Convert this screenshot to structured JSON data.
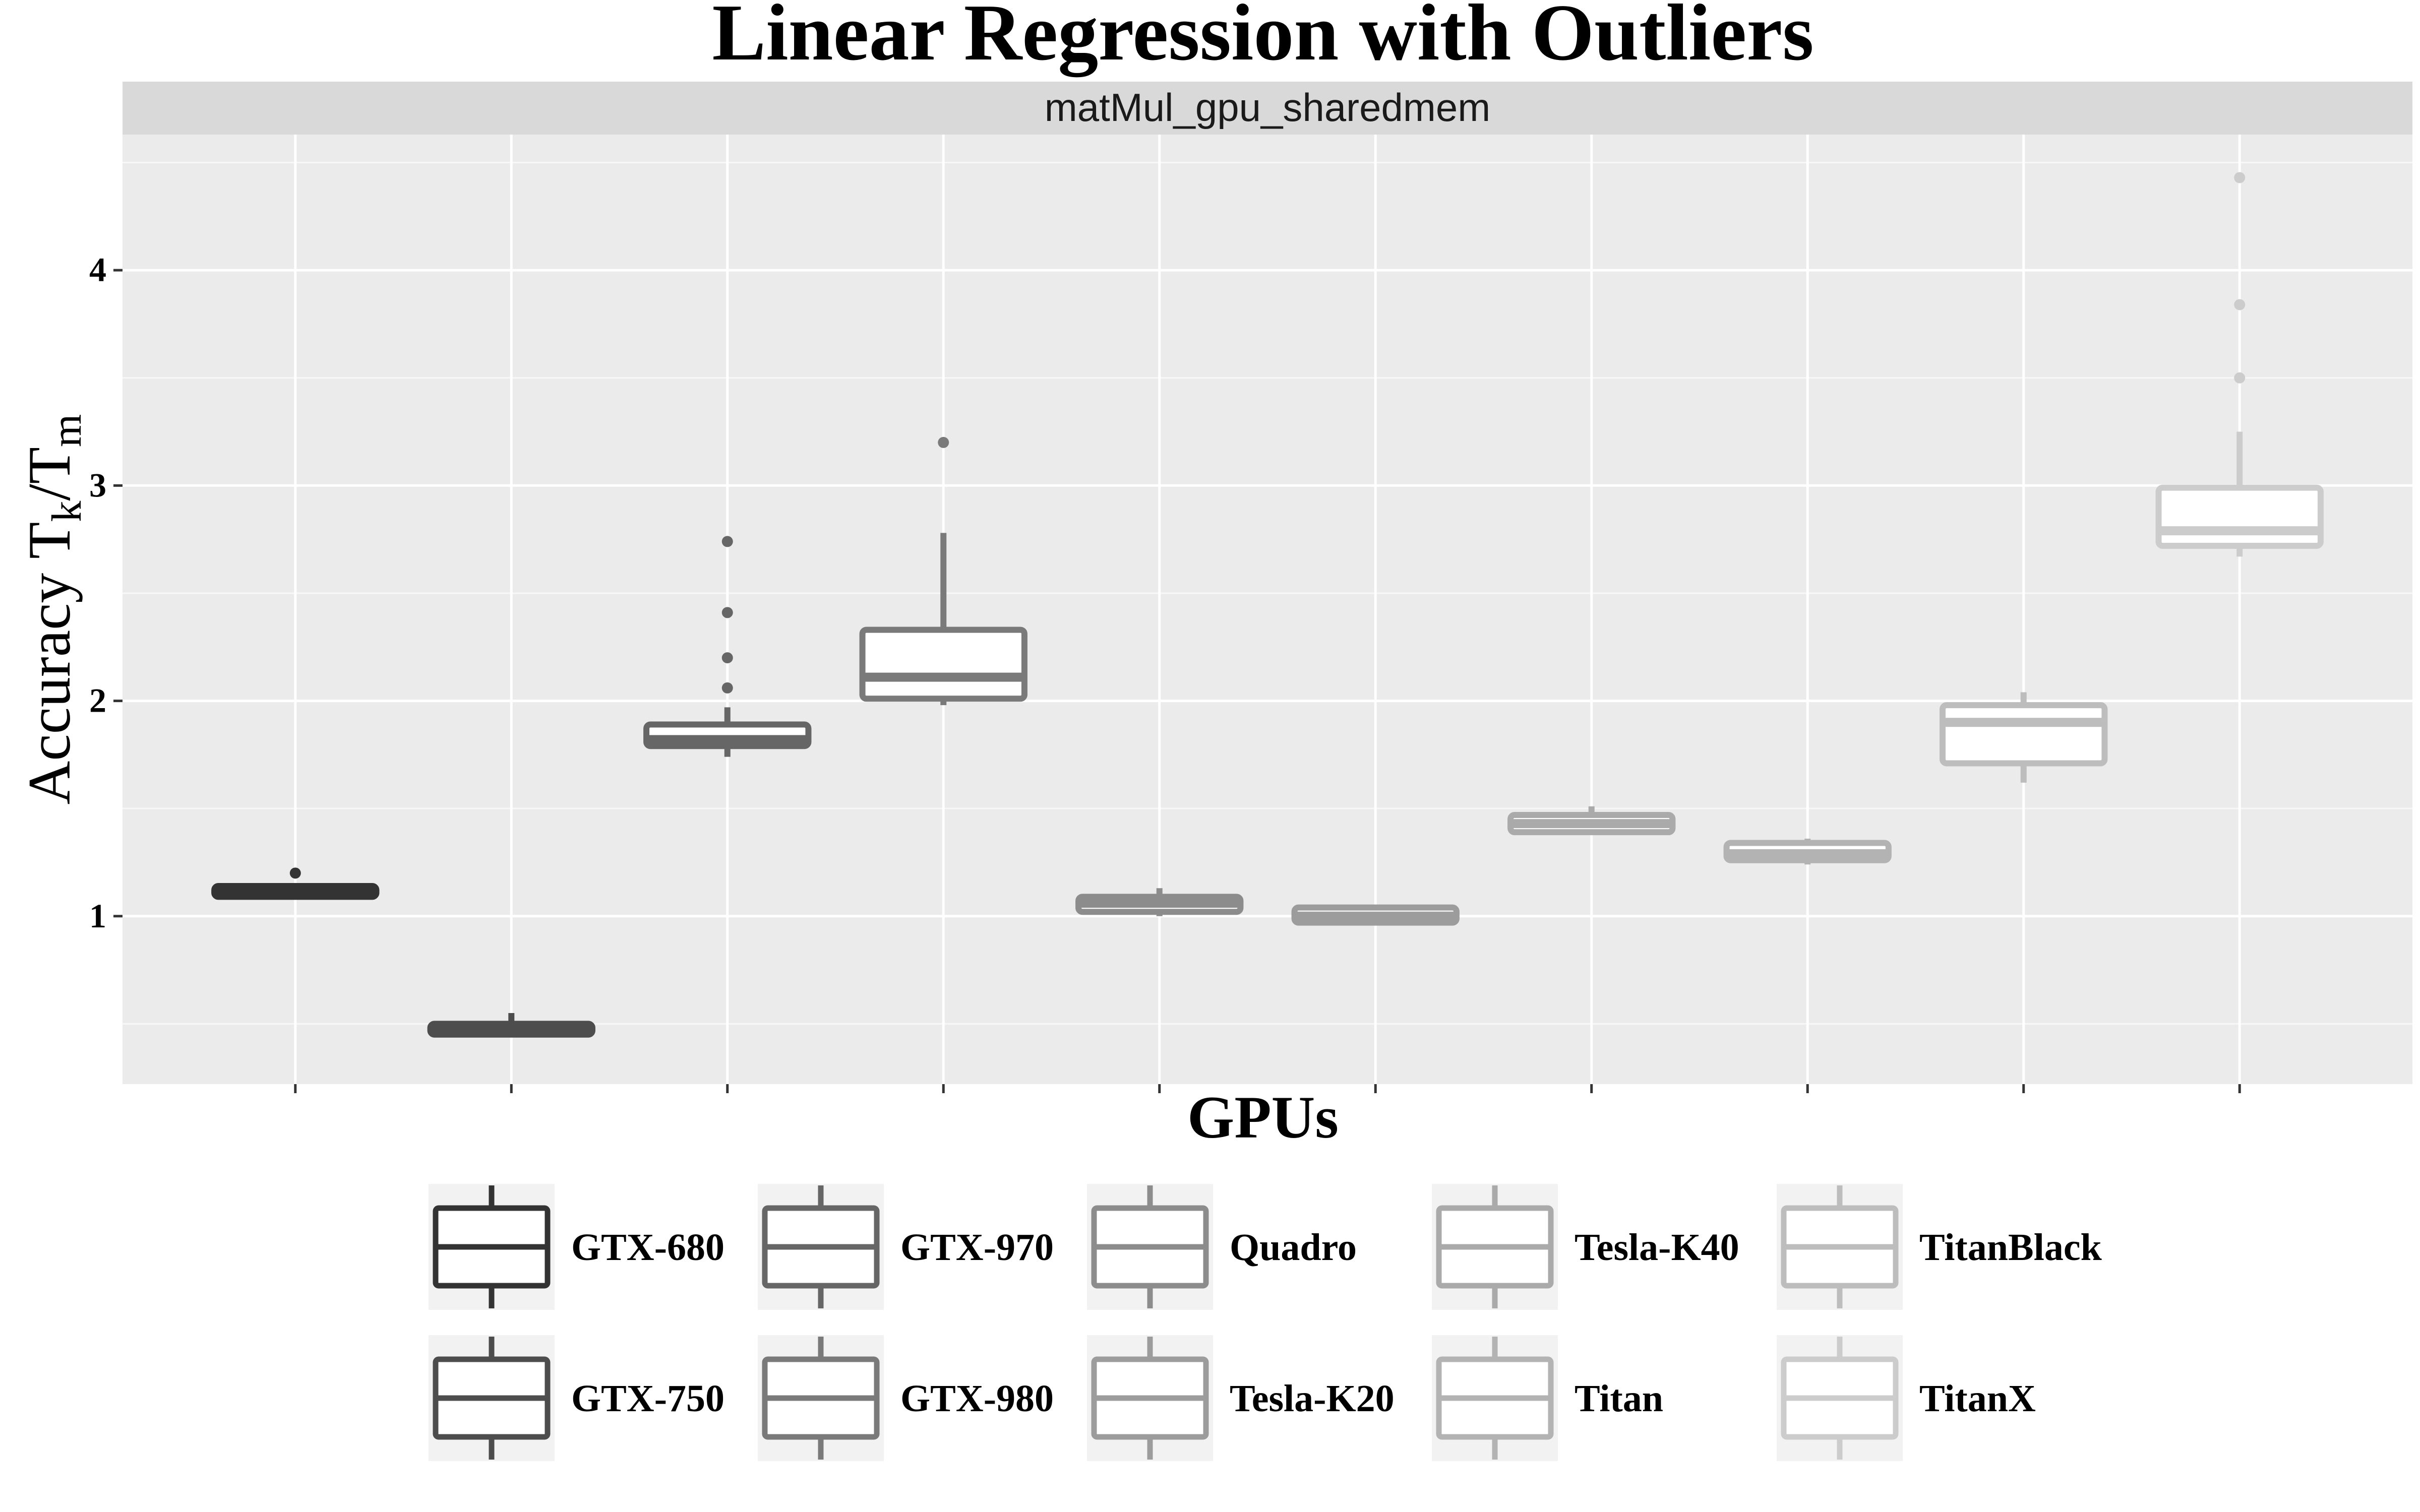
{
  "chart_data": {
    "type": "box",
    "title": "Linear Regression with Outliers",
    "facet_label": "matMul_gpu_sharedmem",
    "xlabel": "GPUs",
    "ylabel": {
      "main": "Accuracy T",
      "sub1": "k",
      "mid": "/T",
      "sub2": "m"
    },
    "ylim": [
      0.22,
      4.63
    ],
    "y_ticks": [
      1,
      2,
      3,
      4
    ],
    "y_minor_gridlines": [
      0.5,
      1.5,
      2.5,
      3.5,
      4.5
    ],
    "x_tick_labels_shown": false,
    "grid": true,
    "legend_position": "bottom",
    "series": [
      {
        "name": "GTX-680",
        "color": "#333333",
        "whisker_low": 1.08,
        "q1": 1.09,
        "median": 1.12,
        "q3": 1.14,
        "whisker_high": 1.15,
        "outliers": [
          1.2
        ]
      },
      {
        "name": "GTX-750",
        "color": "#4d4d4d",
        "whisker_low": 0.44,
        "q1": 0.45,
        "median": 0.47,
        "q3": 0.5,
        "whisker_high": 0.55,
        "outliers": []
      },
      {
        "name": "GTX-970",
        "color": "#666666",
        "whisker_low": 1.74,
        "q1": 1.79,
        "median": 1.82,
        "q3": 1.89,
        "whisker_high": 1.97,
        "outliers": [
          2.06,
          2.2,
          2.41,
          2.74
        ]
      },
      {
        "name": "GTX-980",
        "color": "#7a7a7a",
        "whisker_low": 1.98,
        "q1": 2.01,
        "median": 2.11,
        "q3": 2.33,
        "whisker_high": 2.78,
        "outliers": [
          3.2
        ]
      },
      {
        "name": "Quadro",
        "color": "#8c8c8c",
        "whisker_low": 1.0,
        "q1": 1.02,
        "median": 1.06,
        "q3": 1.09,
        "whisker_high": 1.13,
        "outliers": []
      },
      {
        "name": "Tesla-K20",
        "color": "#9c9c9c",
        "whisker_low": 0.96,
        "q1": 0.97,
        "median": 1.0,
        "q3": 1.04,
        "whisker_high": 1.05,
        "outliers": []
      },
      {
        "name": "Tesla-K40",
        "color": "#aaaaaa",
        "whisker_low": 1.38,
        "q1": 1.39,
        "median": 1.43,
        "q3": 1.47,
        "whisker_high": 1.51,
        "outliers": []
      },
      {
        "name": "Titan",
        "color": "#b3b3b3",
        "whisker_low": 1.24,
        "q1": 1.26,
        "median": 1.29,
        "q3": 1.34,
        "whisker_high": 1.36,
        "outliers": []
      },
      {
        "name": "TitanBlack",
        "color": "#bdbdbd",
        "whisker_low": 1.62,
        "q1": 1.71,
        "median": 1.9,
        "q3": 1.98,
        "whisker_high": 2.04,
        "outliers": []
      },
      {
        "name": "TitanX",
        "color": "#cccccc",
        "whisker_low": 2.67,
        "q1": 2.72,
        "median": 2.79,
        "q3": 2.99,
        "whisker_high": 3.25,
        "outliers": [
          3.5,
          3.84,
          4.43
        ]
      }
    ]
  }
}
